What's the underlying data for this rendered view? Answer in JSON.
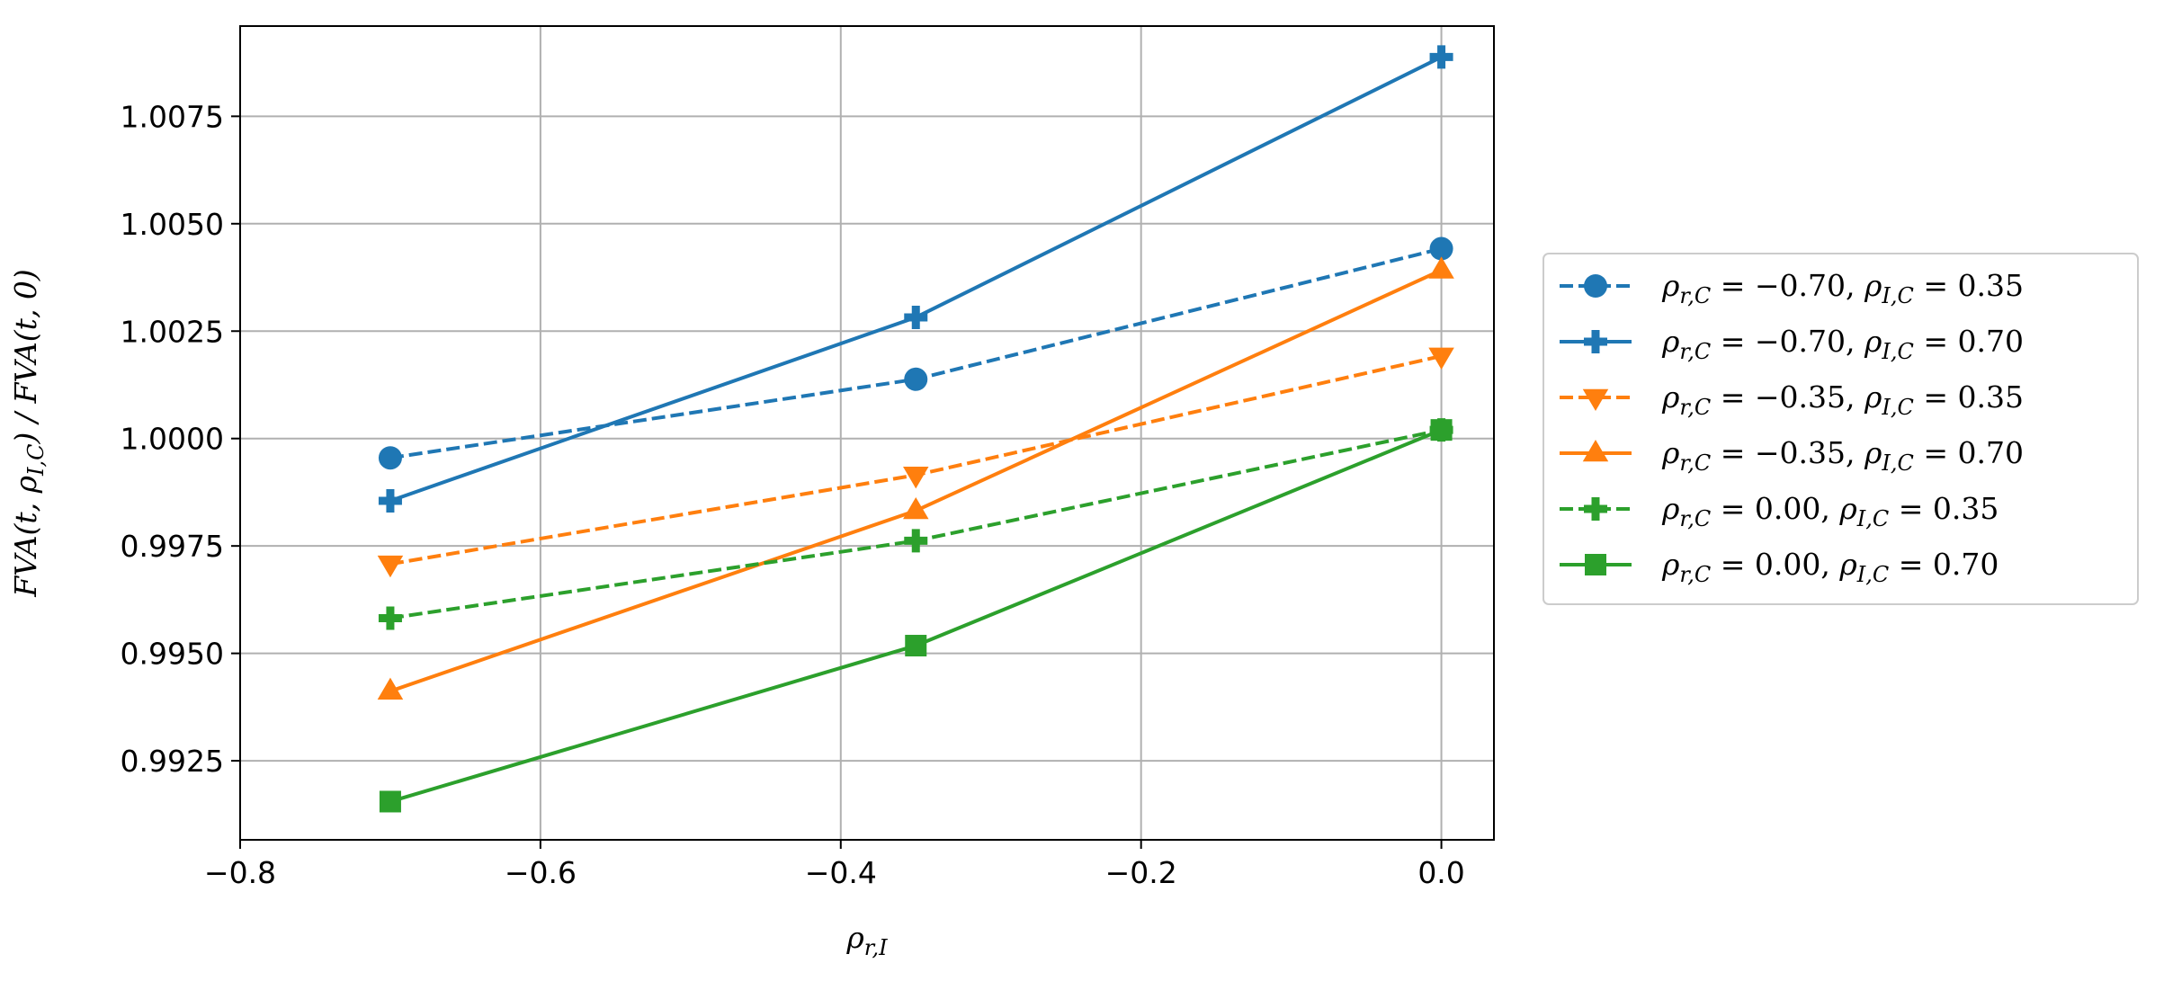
{
  "chart_data": {
    "type": "line",
    "xlabel": "ρ_{r,I}",
    "ylabel": "FVA(t, ρ_{I,C}) / FVA(t, 0)",
    "xlim": [
      -0.8,
      0.035
    ],
    "ylim": [
      0.99066,
      1.0096
    ],
    "xticks": [
      -0.8,
      -0.6,
      -0.4,
      -0.2,
      0.0
    ],
    "xtick_labels": [
      "−0.8",
      "−0.6",
      "−0.4",
      "−0.2",
      "0.0"
    ],
    "yticks": [
      0.9925,
      0.995,
      0.9975,
      1.0,
      1.0025,
      1.005,
      1.0075
    ],
    "ytick_labels": [
      "0.9925",
      "0.9950",
      "0.9975",
      "1.0000",
      "1.0025",
      "1.0050",
      "1.0075"
    ],
    "grid": true,
    "legend_position": "outside-right",
    "x": [
      -0.7,
      -0.35,
      0.0
    ],
    "series": [
      {
        "name": "ρ_{r,C} = −0.70, ρ_{I,C} = 0.35",
        "rho_rc": "−0.70",
        "rho_ic": "0.35",
        "values": [
          0.99955,
          1.00138,
          1.00442
        ],
        "color": "#1f77b4",
        "dash": "dashed",
        "marker": "circle"
      },
      {
        "name": "ρ_{r,C} = −0.70, ρ_{I,C} = 0.70",
        "rho_rc": "−0.70",
        "rho_ic": "0.70",
        "values": [
          0.99855,
          1.00282,
          1.00888
        ],
        "color": "#1f77b4",
        "dash": "solid",
        "marker": "plus"
      },
      {
        "name": "ρ_{r,C} = −0.35, ρ_{I,C} = 0.35",
        "rho_rc": "−0.35",
        "rho_ic": "0.35",
        "values": [
          0.99708,
          0.99915,
          1.00192
        ],
        "color": "#ff7f0e",
        "dash": "dashed",
        "marker": "triangle-down"
      },
      {
        "name": "ρ_{r,C} = −0.35, ρ_{I,C} = 0.70",
        "rho_rc": "−0.35",
        "rho_ic": "0.70",
        "values": [
          0.99412,
          0.99832,
          1.00392
        ],
        "color": "#ff7f0e",
        "dash": "solid",
        "marker": "triangle-up"
      },
      {
        "name": "ρ_{r,C} = 0.00, ρ_{I,C} = 0.35",
        "rho_rc": "0.00",
        "rho_ic": "0.35",
        "values": [
          0.99582,
          0.99762,
          1.0002
        ],
        "color": "#2ca02c",
        "dash": "dashed",
        "marker": "plus"
      },
      {
        "name": "ρ_{r,C} = 0.00, ρ_{I,C} = 0.70",
        "rho_rc": "0.00",
        "rho_ic": "0.70",
        "values": [
          0.99155,
          0.99518,
          1.0002
        ],
        "color": "#2ca02c",
        "dash": "solid",
        "marker": "square"
      }
    ]
  }
}
